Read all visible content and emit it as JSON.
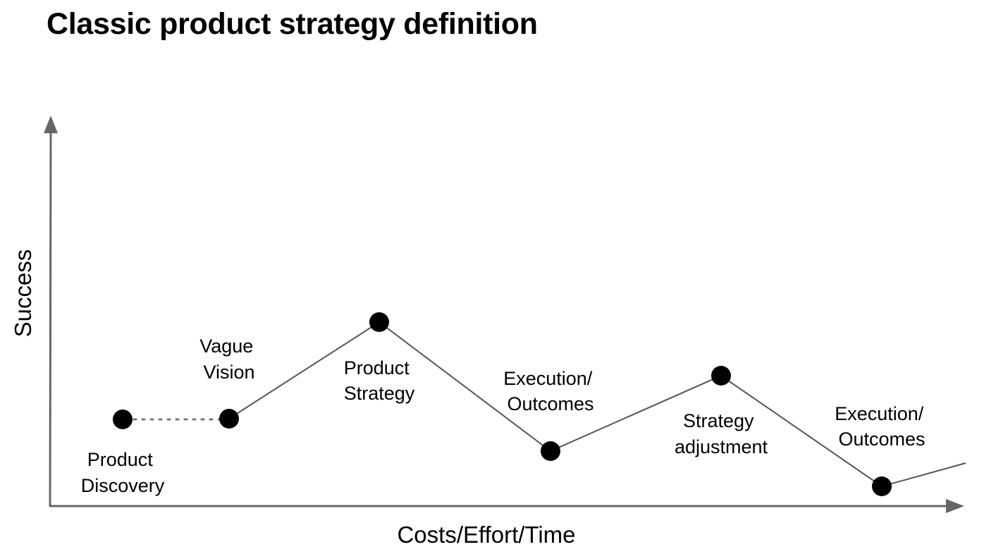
{
  "title": "Classic product strategy definition",
  "axes": {
    "x_label": "Costs/Effort/Time",
    "y_label": "Success"
  },
  "nodes": [
    {
      "id": "product-discovery",
      "lines": [
        "Product",
        "Discovery"
      ]
    },
    {
      "id": "vague-vision",
      "lines": [
        "Vague",
        "Vision"
      ]
    },
    {
      "id": "product-strategy",
      "lines": [
        "Product",
        "Strategy"
      ]
    },
    {
      "id": "execution-outcomes-1",
      "lines": [
        "Execution/",
        "Outcomes"
      ]
    },
    {
      "id": "strategy-adjustment",
      "lines": [
        "Strategy",
        "adjustment"
      ]
    },
    {
      "id": "execution-outcomes-2",
      "lines": [
        "Execution/",
        "Outcomes"
      ]
    }
  ],
  "colors": {
    "axis": "#666666",
    "line": "#555555",
    "node": "#000000",
    "text": "#000000"
  }
}
